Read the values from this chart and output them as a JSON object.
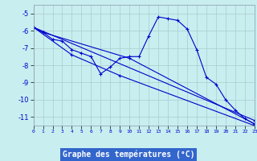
{
  "bg_color": "#c8eef0",
  "grid_color": "#aacccc",
  "line_color": "#0000cc",
  "xlabel": "Graphe des températures (°C)",
  "ylabel_ticks": [
    -5,
    -6,
    -7,
    -8,
    -9,
    -10,
    -11
  ],
  "xlim": [
    0,
    23
  ],
  "ylim": [
    -11.5,
    -4.5
  ],
  "series": [
    [
      0,
      -5.8,
      1,
      -6.1,
      2,
      -6.5,
      3,
      -6.6,
      4,
      -7.1,
      5,
      -7.3,
      6,
      -7.5,
      7,
      -8.5,
      8,
      -8.1,
      9,
      -7.6,
      10,
      -7.5,
      11,
      -7.5,
      12,
      -6.3,
      13,
      -5.2,
      14,
      -5.3,
      15,
      -5.4,
      16,
      -5.9,
      17,
      -7.1,
      18,
      -8.7,
      19,
      -9.1,
      20,
      -10.0,
      21,
      -10.6,
      22,
      -11.1,
      23,
      -11.4
    ],
    [
      0,
      -5.8,
      1,
      -6.1,
      10,
      -7.6,
      23,
      -11.4
    ],
    [
      0,
      -5.8,
      4,
      -7.4,
      9,
      -8.6,
      23,
      -11.5
    ],
    [
      0,
      -5.8,
      23,
      -11.2
    ]
  ]
}
